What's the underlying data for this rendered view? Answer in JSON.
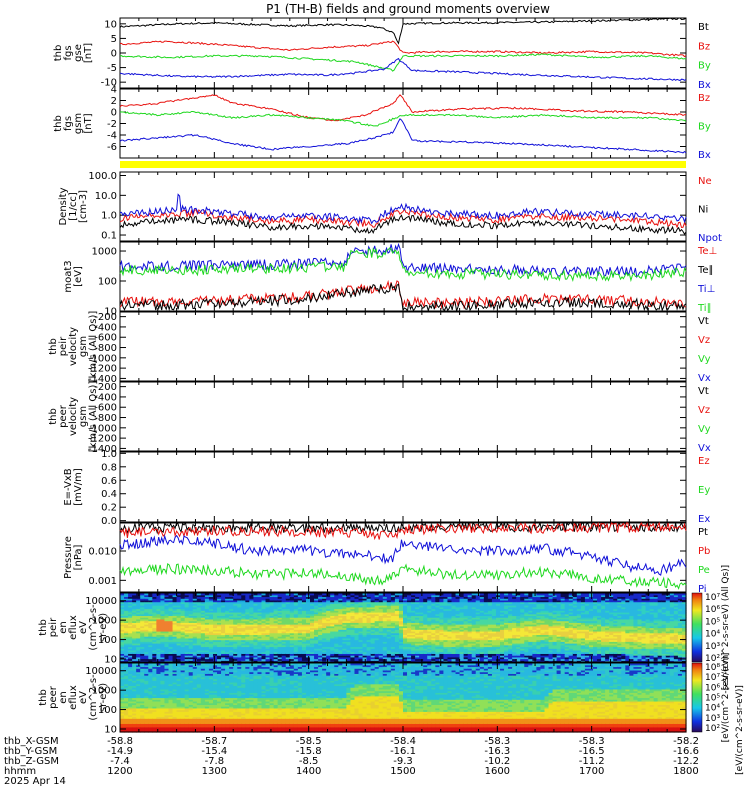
{
  "title": "P1 (TH-B) fields and ground moments overview",
  "colors": {
    "black": "#000000",
    "red": "#e8120f",
    "green": "#1fd81f",
    "blue": "#1010d8",
    "yellow": "#ffff00"
  },
  "chart_data": [
    {
      "id": "fgs_gse",
      "type": "line",
      "ylabel": [
        "thb",
        "fgs",
        "gse",
        "[nT]"
      ],
      "ylim": [
        -12,
        12
      ],
      "yticks": [
        -10,
        -5,
        0,
        5,
        10
      ],
      "series": [
        {
          "name": "Bt",
          "color": "black",
          "x": [
            1200,
            1230,
            1260,
            1300,
            1340,
            1380,
            1420,
            1450,
            1475,
            1490,
            1495,
            1500,
            1540,
            1600,
            1650,
            1700,
            1760,
            1800
          ],
          "y": [
            9,
            9.5,
            10,
            10.3,
            9.8,
            9.3,
            9.7,
            9.5,
            8.8,
            7,
            3,
            10,
            10.3,
            10.4,
            10.6,
            11,
            11.5,
            11.8
          ]
        },
        {
          "name": "Bz",
          "color": "red",
          "x": [
            1200,
            1250,
            1300,
            1340,
            1380,
            1420,
            1460,
            1490,
            1500,
            1540,
            1600,
            1650,
            1700,
            1760,
            1800
          ],
          "y": [
            3,
            4,
            3,
            2,
            1,
            2,
            2.5,
            4,
            0,
            0.5,
            0.5,
            0,
            0.5,
            0,
            -1
          ]
        },
        {
          "name": "By",
          "color": "green",
          "x": [
            1200,
            1250,
            1300,
            1350,
            1400,
            1450,
            1490,
            1500,
            1550,
            1600,
            1650,
            1700,
            1760,
            1800
          ],
          "y": [
            -1,
            -1.5,
            -1,
            -1,
            -2,
            -3,
            -6,
            -1,
            -1,
            -1,
            -0.5,
            -1.5,
            -1,
            -2
          ]
        },
        {
          "name": "Bx",
          "color": "blue",
          "x": [
            1200,
            1230,
            1260,
            1300,
            1340,
            1380,
            1420,
            1450,
            1480,
            1495,
            1510,
            1560,
            1620,
            1680,
            1740,
            1800
          ],
          "y": [
            -7,
            -7.5,
            -8,
            -8.2,
            -7.8,
            -7.3,
            -7.6,
            -6.8,
            -5.5,
            -2,
            -6,
            -6.5,
            -7.3,
            -8,
            -8.7,
            -9.2
          ]
        }
      ]
    },
    {
      "id": "fgs_gsm",
      "type": "line",
      "ylabel": [
        "thb",
        "fgs",
        "gsm",
        "[nT]"
      ],
      "ylim": [
        -8,
        4
      ],
      "yticks": [
        -6,
        -4,
        -2,
        0,
        2,
        4
      ],
      "series": [
        {
          "name": "Bz",
          "color": "red",
          "x": [
            1200,
            1240,
            1280,
            1300,
            1320,
            1360,
            1400,
            1430,
            1460,
            1490,
            1497,
            1510,
            1560,
            1620,
            1680,
            1740,
            1800
          ],
          "y": [
            1,
            1.5,
            2.5,
            3,
            1.5,
            0.5,
            -1,
            -1.5,
            -0.5,
            1.5,
            3,
            0,
            0.5,
            0.7,
            0.2,
            0,
            -0.5
          ]
        },
        {
          "name": "By",
          "color": "green",
          "x": [
            1200,
            1240,
            1280,
            1320,
            1360,
            1400,
            1440,
            1470,
            1500,
            1550,
            1600,
            1650,
            1700,
            1760,
            1800
          ],
          "y": [
            0,
            -0.5,
            0,
            -1,
            -0.5,
            -1,
            -1.5,
            -2.5,
            -0.5,
            -0.5,
            -1,
            -0.5,
            -1,
            -1,
            -1.5
          ]
        },
        {
          "name": "Bx",
          "color": "blue",
          "x": [
            1200,
            1240,
            1280,
            1320,
            1360,
            1400,
            1440,
            1470,
            1490,
            1497,
            1510,
            1560,
            1620,
            1680,
            1740,
            1800
          ],
          "y": [
            -5,
            -4.5,
            -4,
            -5.5,
            -6.5,
            -6,
            -5.5,
            -4.5,
            -3.5,
            -1,
            -5,
            -5.2,
            -5.5,
            -6,
            -6.5,
            -7
          ]
        }
      ]
    },
    {
      "id": "density",
      "type": "line",
      "yscale": "log",
      "ylabel": [
        "Density",
        "[1/cc]",
        "[cm-3]"
      ],
      "ylim": [
        0.05,
        150
      ],
      "yticks": [
        0.1,
        1.0,
        10.0,
        100.0
      ],
      "yticklabels": [
        "0.1",
        "1.0",
        "10.0",
        "100.0"
      ],
      "series": [
        {
          "name": "Ne",
          "color": "red",
          "x": [
            1200,
            1240,
            1280,
            1320,
            1360,
            1400,
            1440,
            1470,
            1500,
            1540,
            1600,
            1640,
            1700,
            1760,
            1800
          ],
          "y": [
            0.7,
            1,
            1.3,
            0.8,
            0.5,
            0.6,
            0.45,
            0.35,
            1.5,
            0.8,
            0.6,
            0.9,
            0.7,
            0.5,
            0.3
          ]
        },
        {
          "name": "Ni",
          "color": "black",
          "x": [
            1200,
            1240,
            1280,
            1320,
            1360,
            1400,
            1440,
            1470,
            1500,
            1540,
            1600,
            1640,
            1700,
            1760,
            1800
          ],
          "y": [
            0.35,
            0.5,
            0.6,
            0.4,
            0.25,
            0.3,
            0.22,
            0.15,
            0.8,
            0.4,
            0.3,
            0.4,
            0.3,
            0.2,
            0.15
          ]
        },
        {
          "name": "Npot",
          "color": "blue",
          "x": [
            1200,
            1240,
            1260,
            1262,
            1264,
            1280,
            1320,
            1360,
            1400,
            1440,
            1470,
            1500,
            1540,
            1600,
            1640,
            1700,
            1760,
            1800
          ],
          "y": [
            1,
            1.5,
            2,
            20,
            2,
            1.8,
            1.2,
            0.8,
            1,
            0.7,
            0.5,
            2.5,
            1.2,
            1,
            1.5,
            1.1,
            0.9,
            0.6
          ]
        }
      ]
    },
    {
      "id": "temperature",
      "type": "line",
      "yscale": "log",
      "ylabel": [
        "moat3",
        "[eV]"
      ],
      "ylim": [
        10,
        2000
      ],
      "yticks": [
        10,
        100,
        1000
      ],
      "yticklabels": [
        "10",
        "100",
        "1000"
      ],
      "series": [
        {
          "name": "Te⊥",
          "color": "red",
          "x": [
            1200,
            1300,
            1400,
            1450,
            1495,
            1500,
            1550,
            1650,
            1750,
            1800
          ],
          "y": [
            20,
            22,
            30,
            50,
            70,
            20,
            18,
            25,
            22,
            18
          ]
        },
        {
          "name": "Te∥",
          "color": "black",
          "x": [
            1200,
            1300,
            1400,
            1450,
            1495,
            1500,
            1550,
            1650,
            1750,
            1800
          ],
          "y": [
            15,
            17,
            25,
            45,
            60,
            14,
            14,
            20,
            17,
            14
          ]
        },
        {
          "name": "Ti⊥",
          "color": "blue",
          "x": [
            1200,
            1300,
            1400,
            1440,
            1441,
            1495,
            1500,
            1550,
            1650,
            1750,
            1800
          ],
          "y": [
            300,
            330,
            380,
            420,
            900,
            1200,
            300,
            250,
            220,
            200,
            300
          ]
        },
        {
          "name": "Ti∥",
          "color": "green",
          "x": [
            1200,
            1300,
            1400,
            1440,
            1441,
            1495,
            1500,
            1550,
            1650,
            1750,
            1800
          ],
          "y": [
            220,
            240,
            280,
            300,
            700,
            900,
            200,
            180,
            160,
            150,
            200
          ]
        }
      ]
    },
    {
      "id": "peir_velocity",
      "type": "line",
      "ylabel": [
        "thb",
        "peir",
        "velocity",
        "gsm",
        "[km/s (All Qs)]"
      ],
      "ylim": [
        -1450,
        -110
      ],
      "yticks": [
        -1400,
        -1200,
        -1000,
        -800,
        -600,
        -400,
        -200
      ],
      "series": [
        {
          "name": "Vt",
          "color": "black",
          "x": [],
          "y": []
        },
        {
          "name": "Vz",
          "color": "red",
          "x": [],
          "y": []
        },
        {
          "name": "Vy",
          "color": "green",
          "x": [],
          "y": []
        },
        {
          "name": "Vx",
          "color": "blue",
          "x": [],
          "y": []
        }
      ]
    },
    {
      "id": "peer_velocity",
      "type": "line",
      "ylabel": [
        "thb",
        "peer",
        "velocity",
        "gsm",
        "[km/s (All Qs)]"
      ],
      "ylim": [
        -1450,
        -110
      ],
      "yticks": [
        -1400,
        -1200,
        -1000,
        -800,
        -600,
        -400,
        -200
      ],
      "series": [
        {
          "name": "Vt",
          "color": "black",
          "x": [],
          "y": []
        },
        {
          "name": "Vz",
          "color": "red",
          "x": [],
          "y": []
        },
        {
          "name": "Vy",
          "color": "green",
          "x": [],
          "y": []
        },
        {
          "name": "Vx",
          "color": "blue",
          "x": [],
          "y": []
        }
      ]
    },
    {
      "id": "efield",
      "type": "line",
      "ylabel": [
        "E=-VxB",
        "[mV/m]"
      ],
      "ylim": [
        -0.02,
        1.02
      ],
      "yticks": [
        0.0,
        0.2,
        0.4,
        0.6,
        0.8,
        1.0
      ],
      "yticklabels": [
        "0.0",
        "0.2",
        "0.4",
        "0.6",
        "0.8",
        "1.0"
      ],
      "series": [
        {
          "name": "Ez",
          "color": "red",
          "x": [],
          "y": []
        },
        {
          "name": "Ey",
          "color": "green",
          "x": [],
          "y": []
        },
        {
          "name": "Ex",
          "color": "blue",
          "x": [],
          "y": []
        }
      ]
    },
    {
      "id": "pressure",
      "type": "line",
      "yscale": "log",
      "ylabel": [
        "Pressure",
        "[nPa]"
      ],
      "ylim": [
        0.0004,
        0.09
      ],
      "yticks": [
        0.001,
        0.01
      ],
      "yticklabels": [
        "0.001",
        "0.010"
      ],
      "series": [
        {
          "name": "Pt",
          "color": "black",
          "x": [
            1200,
            1300,
            1400,
            1490,
            1500,
            1600,
            1700,
            1800
          ],
          "y": [
            0.06,
            0.065,
            0.062,
            0.055,
            0.065,
            0.066,
            0.068,
            0.07
          ]
        },
        {
          "name": "Pb",
          "color": "red",
          "x": [
            1200,
            1300,
            1400,
            1450,
            1490,
            1500,
            1600,
            1700,
            1800
          ],
          "y": [
            0.04,
            0.05,
            0.045,
            0.04,
            0.03,
            0.055,
            0.058,
            0.062,
            0.066
          ]
        },
        {
          "name": "Pe",
          "color": "green",
          "x": [
            1200,
            1250,
            1300,
            1350,
            1400,
            1450,
            1480,
            1500,
            1550,
            1600,
            1650,
            1700,
            1750,
            1800
          ],
          "y": [
            0.002,
            0.0025,
            0.0022,
            0.0015,
            0.0018,
            0.0012,
            0.0009,
            0.0025,
            0.0015,
            0.0015,
            0.002,
            0.0012,
            0.0009,
            0.0007
          ]
        },
        {
          "name": "Pi",
          "color": "blue",
          "x": [
            1200,
            1230,
            1260,
            1300,
            1340,
            1380,
            1420,
            1460,
            1490,
            1500,
            1540,
            1600,
            1650,
            1700,
            1740,
            1770,
            1800
          ],
          "y": [
            0.015,
            0.02,
            0.025,
            0.018,
            0.01,
            0.012,
            0.009,
            0.007,
            0.005,
            0.02,
            0.012,
            0.01,
            0.012,
            0.006,
            0.003,
            0.002,
            0.004
          ]
        }
      ]
    },
    {
      "id": "peir_spectrogram",
      "type": "heatmap",
      "yscale": "log",
      "ylabel": [
        "thb",
        "peir",
        "en",
        "eflux",
        "eV",
        "(cm^2-s-",
        "sr-eV)"
      ],
      "ylim": [
        7,
        25000
      ],
      "yticks": [
        10,
        100,
        1000,
        10000
      ],
      "yticklabels": [
        "10",
        "100",
        "1000",
        "10000"
      ],
      "colorbar": {
        "ticks": [
          "10²",
          "10³",
          "10⁴",
          "10⁵",
          "10⁶",
          "10⁷"
        ],
        "label": "[eV/(cm^2-s-sr-eV) (All Qs)]"
      },
      "peak_energy": {
        "x": [
          1200,
          1240,
          1300,
          1400,
          1440,
          1495,
          1500,
          1550,
          1600,
          1650,
          1700,
          1750,
          1800
        ],
        "y": [
          350,
          500,
          300,
          350,
          1200,
          1500,
          200,
          150,
          150,
          300,
          150,
          120,
          100
        ]
      }
    },
    {
      "id": "peer_spectrogram",
      "type": "heatmap",
      "yscale": "log",
      "ylabel": [
        "thb",
        "peer",
        "en",
        "eflux",
        "eV",
        "(cm^2-s-",
        "sr-eV)"
      ],
      "ylim": [
        7,
        25000
      ],
      "yticks": [
        10,
        100,
        1000,
        10000
      ],
      "yticklabels": [
        "10",
        "100",
        "1000",
        "10000"
      ],
      "colorbar": {
        "ticks": [
          "10²",
          "10³",
          "10⁴",
          "10⁵",
          "10⁶",
          "10⁷",
          "10⁸"
        ],
        "label": "[eV/(cm^2-s-sr-eV)]"
      },
      "cool_cutoff": {
        "x": [
          1200,
          1440,
          1450,
          1495,
          1500,
          1650,
          1660,
          1800
        ],
        "y": [
          400,
          400,
          1800,
          1800,
          300,
          300,
          1000,
          1000
        ]
      }
    }
  ],
  "xaxis": {
    "range": [
      1200,
      1800
    ],
    "rows": [
      {
        "label": "thb_X-GSM",
        "values": [
          "-58.8",
          "-58.7",
          "-58.5",
          "-58.4",
          "-58.3",
          "-58.3",
          "-58.2"
        ]
      },
      {
        "label": "thb_Y-GSM",
        "values": [
          "-14.9",
          "-15.4",
          "-15.8",
          "-16.1",
          "-16.3",
          "-16.5",
          "-16.6"
        ]
      },
      {
        "label": "thb_Z-GSM",
        "values": [
          "-7.4",
          "-7.8",
          "-8.5",
          "-9.3",
          "-10.2",
          "-11.2",
          "-12.2"
        ]
      },
      {
        "label": "hhmm",
        "values": [
          "1200",
          "1300",
          "1400",
          "1500",
          "1600",
          "1700",
          "1800"
        ]
      }
    ],
    "date": "2025 Apr 14"
  },
  "colorbar_shared_label": "[eV/(cm^2-s-sr-eV)]"
}
